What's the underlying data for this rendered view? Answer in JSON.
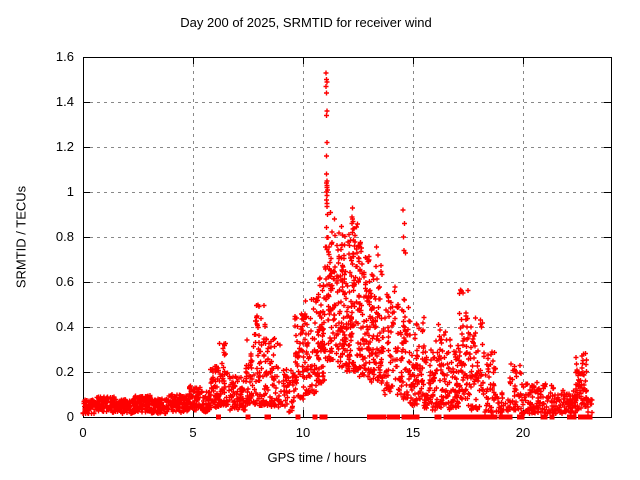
{
  "title": "Day 200 of 2025, SRMTID for receiver wind",
  "x_axis": {
    "label": "GPS time / hours",
    "range": [
      0,
      24
    ],
    "ticks": [
      0,
      5,
      10,
      15,
      20
    ],
    "tick_labels": [
      "0",
      "5",
      "10",
      "15",
      "20"
    ]
  },
  "y_axis": {
    "label": "SRMTID / TECUs",
    "range": [
      0,
      1.6
    ],
    "ticks": [
      0,
      0.2,
      0.4,
      0.6,
      0.8,
      1.0,
      1.2,
      1.4,
      1.6
    ],
    "tick_labels": [
      "0",
      "0.2",
      "0.4",
      "0.6",
      "0.8",
      "1",
      "1.2",
      "1.4",
      "1.6"
    ]
  },
  "colors": {
    "marker": "#ff0000",
    "grid": "#888888",
    "border": "#000000",
    "background": "#ffffff",
    "text": "#000000"
  },
  "chart_data": {
    "type": "scatter",
    "title": "Day 200 of 2025, SRMTID for receiver wind",
    "xlabel": "GPS time / hours",
    "ylabel": "SRMTID / TECUs",
    "xlim": [
      0,
      24
    ],
    "ylim": [
      0,
      1.6
    ],
    "grid": "dashed",
    "legend": "none",
    "render_seed": 7,
    "marker_size_px": 5,
    "gap_marker_size_px": 5,
    "series_name": "SRMTID",
    "peak_points": [
      [
        11.05,
        1.53
      ],
      [
        11.07,
        1.5
      ],
      [
        11.1,
        1.49
      ],
      [
        11.05,
        1.47
      ],
      [
        11.07,
        1.44
      ],
      [
        11.09,
        1.36
      ],
      [
        11.07,
        1.34
      ],
      [
        11.08,
        1.22
      ],
      [
        11.06,
        1.16
      ],
      [
        11.07,
        1.08
      ],
      [
        11.09,
        1.05
      ],
      [
        11.06,
        1.04
      ],
      [
        11.1,
        1.03
      ],
      [
        11.08,
        1.02
      ],
      [
        11.12,
        1.01
      ],
      [
        11.07,
        1.0
      ],
      [
        11.09,
        0.985
      ],
      [
        11.06,
        0.965
      ],
      [
        11.1,
        0.95
      ],
      [
        11.08,
        0.935
      ],
      [
        12.25,
        0.93
      ],
      [
        12.22,
        0.89
      ],
      [
        12.24,
        0.88
      ],
      [
        12.27,
        0.87
      ],
      [
        12.23,
        0.86
      ],
      [
        12.26,
        0.82
      ],
      [
        14.55,
        0.92
      ],
      [
        14.62,
        0.86
      ],
      [
        14.57,
        0.8
      ],
      [
        14.6,
        0.74
      ],
      [
        14.66,
        0.73
      ]
    ],
    "clusters_format": "[x_min, x_max, y_min, y_max, count, low_bias]",
    "clusters": [
      [
        0.0,
        0.6,
        0.015,
        0.075,
        70,
        1.0
      ],
      [
        0.6,
        1.5,
        0.02,
        0.09,
        95,
        1.0
      ],
      [
        1.5,
        2.3,
        0.015,
        0.08,
        85,
        1.0
      ],
      [
        2.3,
        3.1,
        0.02,
        0.095,
        85,
        1.0
      ],
      [
        3.1,
        3.9,
        0.015,
        0.08,
        85,
        1.0
      ],
      [
        3.9,
        4.8,
        0.02,
        0.1,
        95,
        1.0
      ],
      [
        4.8,
        5.4,
        0.03,
        0.14,
        60,
        1.2
      ],
      [
        5.4,
        5.8,
        0.02,
        0.12,
        40,
        1.2
      ],
      [
        5.8,
        6.2,
        0.04,
        0.23,
        55,
        1.4
      ],
      [
        6.2,
        6.6,
        0.05,
        0.33,
        45,
        1.5
      ],
      [
        6.6,
        7.4,
        0.03,
        0.18,
        75,
        1.2
      ],
      [
        7.4,
        7.8,
        0.06,
        0.35,
        45,
        1.5
      ],
      [
        7.8,
        8.3,
        0.05,
        0.5,
        70,
        1.6
      ],
      [
        8.3,
        9.0,
        0.04,
        0.35,
        65,
        1.4
      ],
      [
        9.0,
        9.6,
        0.02,
        0.22,
        50,
        1.2
      ],
      [
        9.6,
        10.1,
        0.08,
        0.46,
        60,
        1.3
      ],
      [
        10.1,
        10.7,
        0.1,
        0.55,
        70,
        1.3
      ],
      [
        10.7,
        11.0,
        0.15,
        0.62,
        60,
        1.3
      ],
      [
        11.0,
        11.5,
        0.25,
        0.92,
        85,
        1.3
      ],
      [
        11.5,
        12.0,
        0.22,
        0.85,
        90,
        1.3
      ],
      [
        12.0,
        12.5,
        0.2,
        0.9,
        90,
        1.4
      ],
      [
        12.5,
        13.0,
        0.18,
        0.78,
        90,
        1.3
      ],
      [
        13.0,
        13.3,
        0.15,
        0.65,
        50,
        1.3
      ],
      [
        13.3,
        13.6,
        0.15,
        0.76,
        50,
        1.4
      ],
      [
        13.6,
        14.0,
        0.1,
        0.55,
        45,
        1.4
      ],
      [
        14.0,
        14.5,
        0.1,
        0.62,
        45,
        1.5
      ],
      [
        14.5,
        14.8,
        0.08,
        0.6,
        35,
        1.5
      ],
      [
        14.8,
        15.2,
        0.05,
        0.45,
        50,
        1.4
      ],
      [
        15.2,
        15.5,
        0.08,
        0.47,
        35,
        1.4
      ],
      [
        15.5,
        16.0,
        0.03,
        0.3,
        55,
        1.3
      ],
      [
        16.0,
        16.6,
        0.04,
        0.42,
        65,
        1.4
      ],
      [
        16.6,
        17.1,
        0.03,
        0.35,
        60,
        1.3
      ],
      [
        17.1,
        17.5,
        0.08,
        0.57,
        55,
        1.4
      ],
      [
        17.5,
        18.2,
        0.03,
        0.45,
        70,
        1.5
      ],
      [
        18.2,
        18.8,
        0.02,
        0.3,
        50,
        1.5
      ],
      [
        18.8,
        19.4,
        0.02,
        0.12,
        25,
        1.2
      ],
      [
        19.4,
        19.9,
        0.03,
        0.26,
        40,
        1.4
      ],
      [
        19.9,
        21.4,
        0.015,
        0.16,
        115,
        1.4
      ],
      [
        21.4,
        22.4,
        0.015,
        0.12,
        85,
        1.3
      ],
      [
        22.4,
        22.9,
        0.03,
        0.29,
        65,
        1.2
      ],
      [
        22.9,
        23.15,
        0.02,
        0.08,
        12,
        1.2
      ]
    ],
    "gap_markers": {
      "marker": "filled-square",
      "y": 0,
      "x": [
        6.15,
        7.5,
        8.37,
        8.43,
        9.78,
        10.55,
        10.86,
        11.0,
        13.02,
        13.08,
        13.18,
        13.28,
        13.42,
        13.52,
        13.65,
        13.92,
        14.0,
        14.22,
        14.3,
        14.58,
        14.65,
        14.78,
        14.88,
        15.0,
        15.1,
        15.18,
        16.08,
        16.18,
        16.5,
        16.58,
        16.82,
        16.92,
        17.12,
        17.2,
        17.42,
        17.52,
        17.62,
        17.75,
        17.85,
        17.95,
        18.05,
        18.28,
        18.38,
        18.52,
        18.62,
        18.72,
        19.0,
        19.22,
        19.32,
        19.42,
        19.85,
        19.95,
        20.9,
        21.0,
        21.32,
        22.12,
        22.22,
        22.32,
        22.62,
        22.72,
        22.95,
        23.05
      ]
    }
  }
}
